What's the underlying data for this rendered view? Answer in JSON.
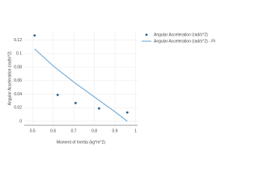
{
  "chart_data": {
    "type": "scatter",
    "x_label": "Moment of Inertia (kg*m^2)",
    "y_label": "Angular Acceleration (rad/s^2)",
    "series": [
      {
        "name": "Angular Acceleration (rad/s^2)",
        "mode": "markers",
        "color": "#1f5f8f",
        "x": [
          0.51,
          0.622,
          0.709,
          0.823,
          0.96
        ],
        "values": [
          0.127,
          0.039,
          0.027,
          0.019,
          0.013
        ]
      },
      {
        "name": "Angular Acceleration (rad/s^2) - Fit",
        "mode": "line",
        "color": "#7fb0d6",
        "x": [
          0.51,
          0.6,
          0.7,
          0.8,
          0.9,
          0.96
        ],
        "values": [
          0.107,
          0.082,
          0.058,
          0.036,
          0.014,
          0.0
        ]
      }
    ],
    "xlim": [
      0.46,
      1.01
    ],
    "xticks": [
      0.5,
      0.6,
      0.7,
      0.8,
      0.9,
      1
    ],
    "ylim": [
      -0.006,
      0.134
    ],
    "yticks": [
      0,
      0.02,
      0.04,
      0.06,
      0.08,
      0.1,
      0.12
    ],
    "grid": true,
    "legend": "top-right"
  }
}
